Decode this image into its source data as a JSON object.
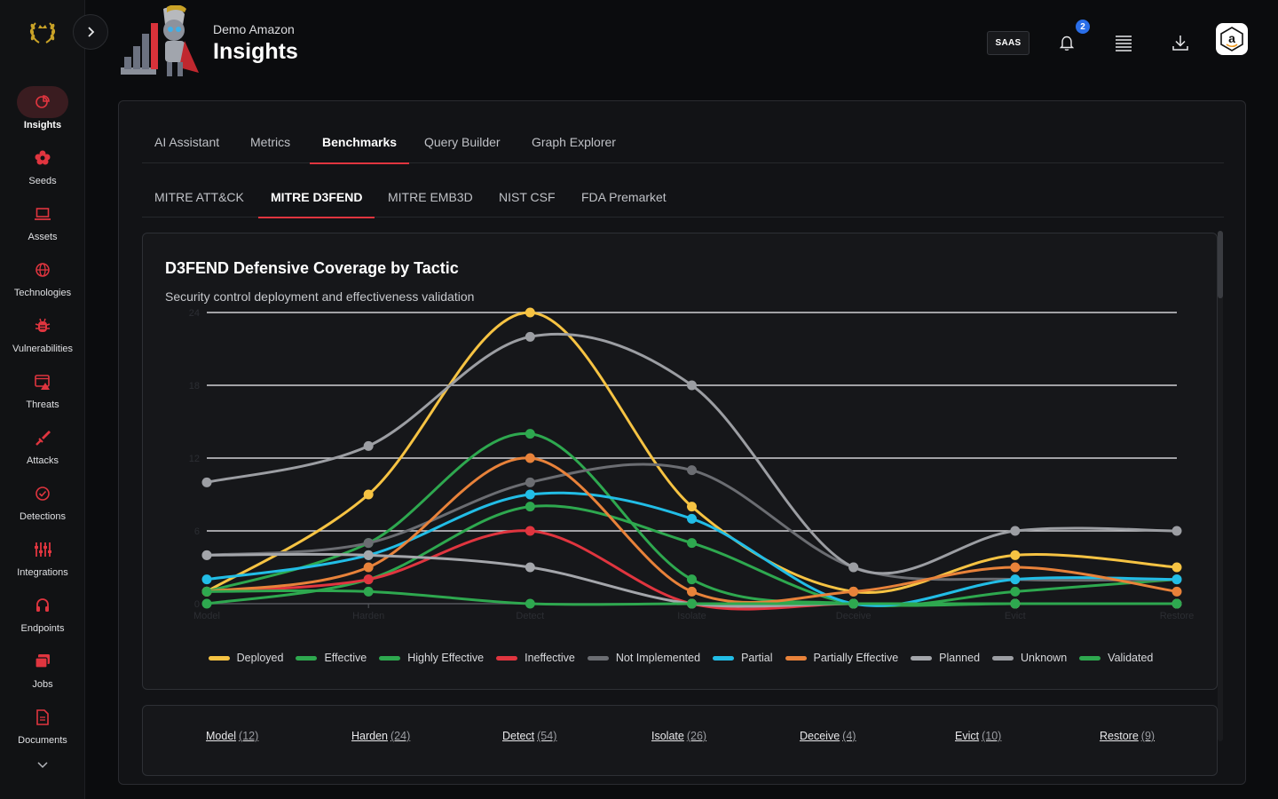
{
  "org": {
    "name": "Demo Amazon"
  },
  "page": {
    "title": "Insights"
  },
  "header": {
    "saas_label": "SAAS",
    "notification_count": "2",
    "avatar_letter": "a"
  },
  "sidebar": {
    "items": [
      {
        "label": "Insights",
        "icon": "pie-chart-icon",
        "active": true
      },
      {
        "label": "Seeds",
        "icon": "flower-icon"
      },
      {
        "label": "Assets",
        "icon": "laptop-icon"
      },
      {
        "label": "Technologies",
        "icon": "globe-icon"
      },
      {
        "label": "Vulnerabilities",
        "icon": "bug-icon"
      },
      {
        "label": "Threats",
        "icon": "alert-window-icon"
      },
      {
        "label": "Attacks",
        "icon": "sword-icon"
      },
      {
        "label": "Detections",
        "icon": "check-circle-icon"
      },
      {
        "label": "Integrations",
        "icon": "sliders-icon"
      },
      {
        "label": "Endpoints",
        "icon": "headset-icon"
      },
      {
        "label": "Jobs",
        "icon": "stack-icon"
      },
      {
        "label": "Documents",
        "icon": "document-icon"
      }
    ]
  },
  "tabs": [
    "AI Assistant",
    "Metrics",
    "Benchmarks",
    "Query Builder",
    "Graph Explorer"
  ],
  "active_tab": "Benchmarks",
  "subtabs": [
    "MITRE ATT&CK",
    "MITRE D3FEND",
    "MITRE EMB3D",
    "NIST CSF",
    "FDA Premarket"
  ],
  "active_subtab": "MITRE D3FEND",
  "chart_data": {
    "type": "line",
    "title": "D3FEND Defensive Coverage by Tactic",
    "subtitle": "Security control deployment and effectiveness validation",
    "categories": [
      "Model",
      "Harden",
      "Detect",
      "Isolate",
      "Deceive",
      "Evict",
      "Restore"
    ],
    "y_ticks": [
      "0",
      "6",
      "12",
      "18",
      "24"
    ],
    "ylim": [
      0,
      24
    ],
    "grid": true,
    "legend_position": "bottom",
    "series": [
      {
        "name": "Deployed",
        "color": "#f6c343",
        "values": [
          1,
          9,
          24,
          8,
          1,
          4,
          3
        ]
      },
      {
        "name": "Effective",
        "color": "#2ea84f",
        "values": [
          1,
          5,
          14,
          2,
          0,
          0,
          0
        ]
      },
      {
        "name": "Highly Effective",
        "color": "#2ea84f",
        "values": [
          0,
          2,
          8,
          5,
          0,
          1,
          2
        ]
      },
      {
        "name": "Ineffective",
        "color": "#e0353f",
        "values": [
          1,
          2,
          6,
          0,
          0,
          0,
          0
        ]
      },
      {
        "name": "Not Implemented",
        "color": "#6b6d72",
        "values": [
          4,
          5,
          10,
          11,
          3,
          2,
          2
        ]
      },
      {
        "name": "Partial",
        "color": "#22bde6",
        "values": [
          2,
          4,
          9,
          7,
          0,
          2,
          2
        ]
      },
      {
        "name": "Partially Effective",
        "color": "#e8823a",
        "values": [
          1,
          3,
          12,
          1,
          1,
          3,
          1
        ]
      },
      {
        "name": "Planned",
        "color": "#a4a6ab",
        "values": [
          4,
          4,
          3,
          0,
          0,
          0,
          0
        ]
      },
      {
        "name": "Unknown",
        "color": "#9c9ea3",
        "values": [
          10,
          13,
          22,
          18,
          3,
          6,
          6
        ]
      },
      {
        "name": "Validated",
        "color": "#2ea84f",
        "values": [
          1,
          1,
          0,
          0,
          0,
          0,
          0
        ]
      }
    ]
  },
  "tactic_summary": [
    {
      "name": "Model",
      "count": "(12)"
    },
    {
      "name": "Harden",
      "count": "(24)"
    },
    {
      "name": "Detect",
      "count": "(54)"
    },
    {
      "name": "Isolate",
      "count": "(26)"
    },
    {
      "name": "Deceive",
      "count": "(4)"
    },
    {
      "name": "Evict",
      "count": "(10)"
    },
    {
      "name": "Restore",
      "count": "(9)"
    }
  ]
}
